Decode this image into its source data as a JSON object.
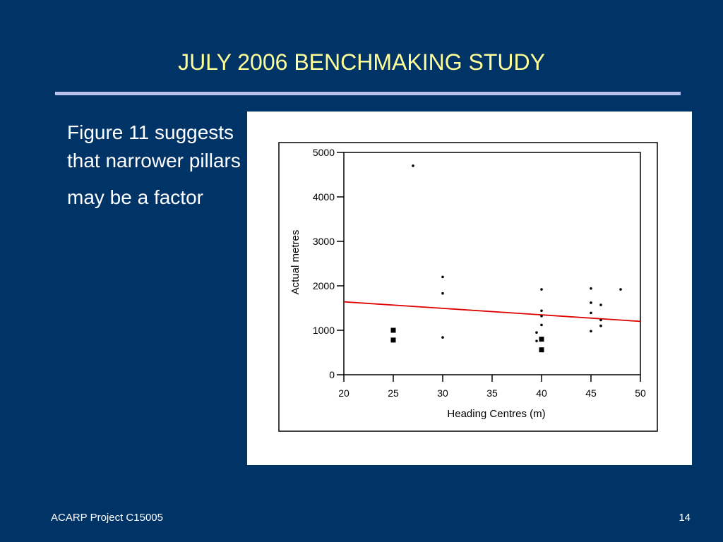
{
  "slide": {
    "title": "JULY 2006 BENCHMAKING STUDY",
    "body_lines": [
      "Figure 11 suggests that narrower pillars",
      "may be a factor"
    ],
    "footer_left": "ACARP Project C15005",
    "page_number": "14",
    "colors": {
      "background": "#003366",
      "title": "#ffff99",
      "rule": "#b8c4ef"
    }
  },
  "chart_data": {
    "type": "scatter",
    "xlabel": "Heading Centres (m)",
    "ylabel": "Actual metres",
    "xlim": [
      20,
      50
    ],
    "ylim": [
      0,
      5000
    ],
    "x_ticks": [
      20,
      25,
      30,
      35,
      40,
      45,
      50
    ],
    "y_ticks": [
      0,
      1000,
      2000,
      3000,
      4000,
      5000
    ],
    "grid": false,
    "points": [
      {
        "x": 25,
        "y": 1000,
        "marker": "square"
      },
      {
        "x": 25,
        "y": 780,
        "marker": "square"
      },
      {
        "x": 27,
        "y": 4700,
        "marker": "dot"
      },
      {
        "x": 30,
        "y": 2200,
        "marker": "dot"
      },
      {
        "x": 30,
        "y": 1830,
        "marker": "dot"
      },
      {
        "x": 30,
        "y": 840,
        "marker": "dot"
      },
      {
        "x": 40,
        "y": 1920,
        "marker": "dot"
      },
      {
        "x": 40,
        "y": 1440,
        "marker": "dot"
      },
      {
        "x": 40,
        "y": 1320,
        "marker": "dot"
      },
      {
        "x": 40,
        "y": 1120,
        "marker": "dot"
      },
      {
        "x": 39.5,
        "y": 950,
        "marker": "dot"
      },
      {
        "x": 39.5,
        "y": 760,
        "marker": "dot"
      },
      {
        "x": 40,
        "y": 800,
        "marker": "square"
      },
      {
        "x": 40,
        "y": 560,
        "marker": "square"
      },
      {
        "x": 45,
        "y": 1940,
        "marker": "dot"
      },
      {
        "x": 45,
        "y": 1620,
        "marker": "dot"
      },
      {
        "x": 45,
        "y": 1390,
        "marker": "dot"
      },
      {
        "x": 45,
        "y": 980,
        "marker": "dot"
      },
      {
        "x": 46,
        "y": 1570,
        "marker": "dot"
      },
      {
        "x": 46,
        "y": 1230,
        "marker": "dot"
      },
      {
        "x": 46,
        "y": 1100,
        "marker": "dot"
      },
      {
        "x": 48,
        "y": 1920,
        "marker": "dot"
      }
    ],
    "trendline": {
      "x": [
        20,
        50
      ],
      "y": [
        1640,
        1200
      ],
      "color": "#e00000"
    }
  }
}
